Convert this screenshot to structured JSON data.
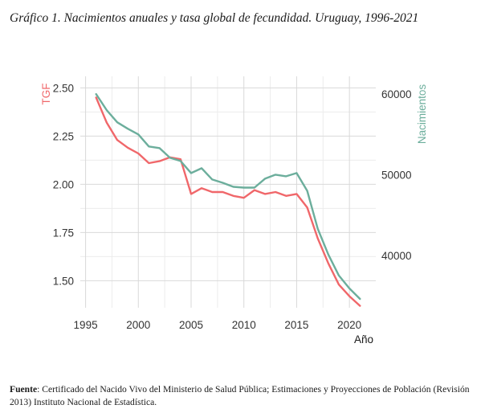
{
  "caption": "Gráfico 1. Nacimientos anuales y tasa global de fecundidad. Uruguay, 1996-2021",
  "source": {
    "label": "Fuente",
    "text": ": Certificado del Nacido Vivo del Ministerio de Salud Pública; Estimaciones y Proyecciones de Población (Revisión 2013) Instituto Nacional de Estadística."
  },
  "chart_data": {
    "type": "line",
    "xlabel": "Año",
    "x_ticks": [
      1995,
      2000,
      2005,
      2010,
      2015,
      2020
    ],
    "xlim": [
      1994.5,
      2022.5
    ],
    "left_axis": {
      "label": "TGF",
      "ticks": [
        "1.50",
        "1.75",
        "2.00",
        "2.25",
        "2.50"
      ],
      "tick_values": [
        1.5,
        1.75,
        2.0,
        2.25,
        2.5
      ],
      "ylim": [
        1.36,
        2.56
      ],
      "color": "#f0676a"
    },
    "right_axis": {
      "label": "Nacimientos",
      "ticks": [
        "40000",
        "50000",
        "60000"
      ],
      "tick_values": [
        40000,
        50000,
        60000
      ],
      "ylim": [
        33500,
        62200
      ],
      "color": "#6cae9c"
    },
    "grid": true,
    "x": [
      1996,
      1997,
      1998,
      1999,
      2000,
      2001,
      2002,
      2003,
      2004,
      2005,
      2006,
      2007,
      2008,
      2009,
      2010,
      2011,
      2012,
      2013,
      2014,
      2015,
      2016,
      2017,
      2018,
      2019,
      2020,
      2021
    ],
    "series": [
      {
        "name": "TGF",
        "axis": "left",
        "color": "#f0676a",
        "values": [
          2.45,
          2.32,
          2.23,
          2.19,
          2.16,
          2.11,
          2.12,
          2.14,
          2.13,
          1.95,
          1.98,
          1.96,
          1.96,
          1.94,
          1.93,
          1.97,
          1.95,
          1.96,
          1.94,
          1.95,
          1.88,
          1.72,
          1.59,
          1.48,
          1.42,
          1.37
        ]
      },
      {
        "name": "Nacimientos",
        "axis": "right",
        "color": "#6cae9c",
        "values": [
          60000,
          58000,
          56500,
          55700,
          55000,
          53500,
          53300,
          52100,
          51700,
          50200,
          50800,
          49400,
          49000,
          48500,
          48400,
          48400,
          49500,
          50000,
          49800,
          50200,
          48000,
          43300,
          40100,
          37500,
          35900,
          34600
        ]
      }
    ]
  }
}
